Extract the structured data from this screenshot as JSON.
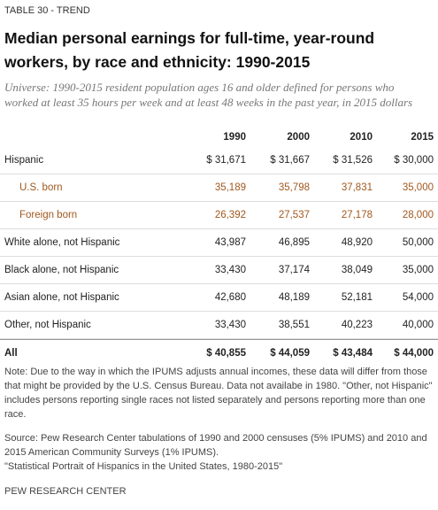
{
  "header": {
    "label": "TABLE 30 - TREND",
    "title": "Median personal earnings for full-time, year-round workers, by race and ethnicity: 1990-2015",
    "subtitle": "Universe: 1990-2015 resident population ages 16 and older defined for persons who worked at least 35 hours per week and at least 48 weeks in the past year, in 2015 dollars"
  },
  "table": {
    "columns": [
      "1990",
      "2000",
      "2010",
      "2015"
    ],
    "rows": [
      [
        "Hispanic",
        "$ 31,671",
        "$ 31,667",
        "$ 31,526",
        "$ 30,000"
      ],
      [
        "U.S. born",
        "35,189",
        "35,798",
        "37,831",
        "35,000"
      ],
      [
        "Foreign born",
        "26,392",
        "27,537",
        "27,178",
        "28,000"
      ],
      [
        "White alone, not Hispanic",
        "43,987",
        "46,895",
        "48,920",
        "50,000"
      ],
      [
        "Black alone, not Hispanic",
        "33,430",
        "37,174",
        "38,049",
        "35,000"
      ],
      [
        "Asian alone, not Hispanic",
        "42,680",
        "48,189",
        "52,181",
        "54,000"
      ],
      [
        "Other, not Hispanic",
        "33,430",
        "38,551",
        "40,223",
        "40,000"
      ],
      [
        "All",
        "$ 40,855",
        "$ 44,059",
        "$ 43,484",
        "$ 44,000"
      ]
    ]
  },
  "footer": {
    "note": "Note: Due to the way in which the IPUMS adjusts annual incomes, these data will differ from those that might be provided by the U.S. Census Bureau. Data not availabe in 1980. \"Other, not Hispanic\" includes persons reporting single races not listed separately and persons reporting more than one race.",
    "source": "Source: Pew Research Center tabulations of 1990 and 2000 censuses (5% IPUMS) and 2010 and 2015 American Community Surveys (1% IPUMS).",
    "report": "\"Statistical Portrait of Hispanics in the United States, 1980-2015\"",
    "org": "PEW RESEARCH CENTER"
  }
}
